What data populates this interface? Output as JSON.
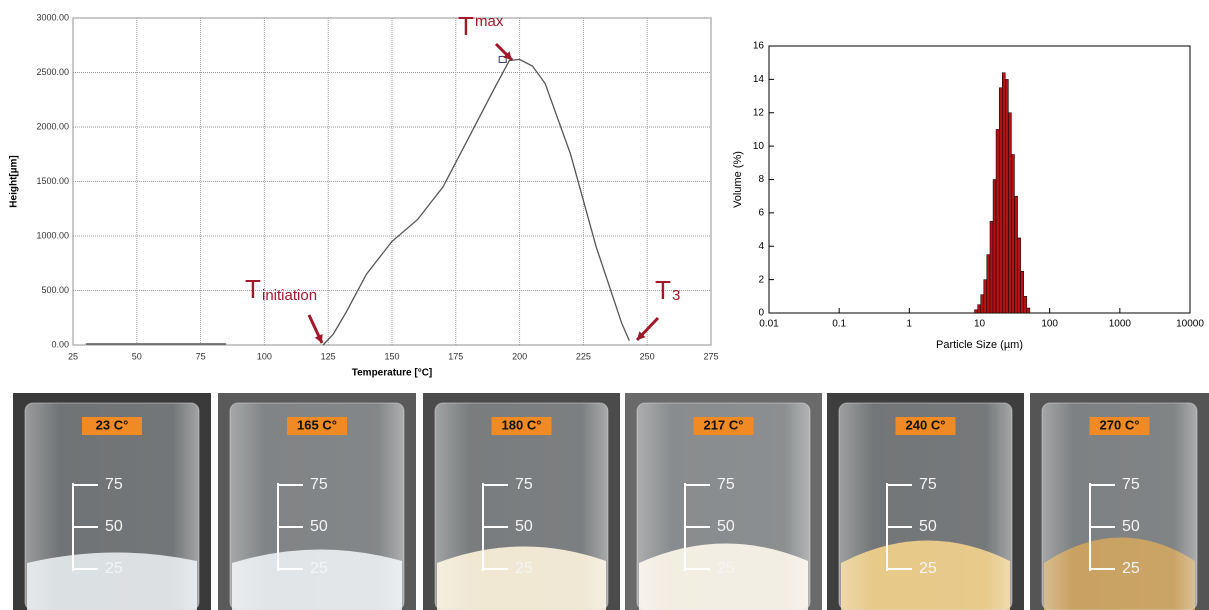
{
  "chart_data": [
    {
      "type": "line",
      "xlabel": "Temperature [°C]",
      "ylabel": "Height[µm]",
      "x": [
        30,
        85,
        100,
        123,
        127,
        132,
        140,
        150,
        160,
        170,
        180,
        190,
        196,
        200,
        205,
        210,
        220,
        230,
        240,
        243
      ],
      "values": [
        10,
        10,
        null,
        0,
        100,
        300,
        650,
        950,
        1150,
        1450,
        1900,
        2350,
        2610,
        2620,
        2560,
        2400,
        1750,
        900,
        200,
        40
      ],
      "color": "#555555",
      "xlim": [
        25,
        275
      ],
      "xticks": [
        25,
        50,
        75,
        100,
        125,
        150,
        175,
        200,
        225,
        250,
        275
      ],
      "ylim": [
        0,
        3000
      ],
      "yticks": [
        {
          "value": 0,
          "label": "0.00"
        },
        {
          "value": 500,
          "label": "500.00"
        },
        {
          "value": 1000,
          "label": "1000.00"
        },
        {
          "value": 1500,
          "label": "1500.00"
        },
        {
          "value": 2000,
          "label": "2000.00"
        },
        {
          "value": 2500,
          "label": "2500.00"
        },
        {
          "value": 3000,
          "label": "3000.00"
        }
      ],
      "grid": true,
      "annotations": [
        {
          "text": "T",
          "subscript": "max"
        },
        {
          "text": "T",
          "subscript": "initiation"
        },
        {
          "text": "T",
          "subscript": "3"
        }
      ]
    },
    {
      "type": "histogram",
      "xlabel": "Particle Size (µm)",
      "ylabel": "Volume (%)",
      "log_x": true,
      "bins": [
        8.5,
        9.4,
        10.4,
        11.5,
        12.7,
        14.1,
        15.6,
        17.2,
        19.1,
        21.1,
        23.3,
        25.8,
        28.5,
        31.5,
        34.9,
        38.6,
        42.7,
        47.2,
        52.2
      ],
      "values": [
        0.2,
        0.5,
        1.1,
        2,
        3.5,
        5.5,
        8,
        11,
        13.5,
        14.4,
        14,
        12,
        9.5,
        7,
        4.5,
        2.5,
        1,
        0.3
      ],
      "color": "#b01414",
      "xlim": [
        0.01,
        10000
      ],
      "xticks": [
        0.01,
        0.1,
        1,
        10,
        100,
        1000,
        10000
      ],
      "ylim": [
        0,
        16
      ],
      "yticks": [
        0,
        2,
        4,
        6,
        8,
        10,
        12,
        14,
        16
      ]
    }
  ],
  "photos": [
    {
      "label": "23 C°"
    },
    {
      "label": "165 C°"
    },
    {
      "label": "180 C°"
    },
    {
      "label": "217 C°"
    },
    {
      "label": "240 C°"
    },
    {
      "label": "270 C°"
    }
  ],
  "beaker_marks": [
    "75",
    "50",
    "25"
  ]
}
